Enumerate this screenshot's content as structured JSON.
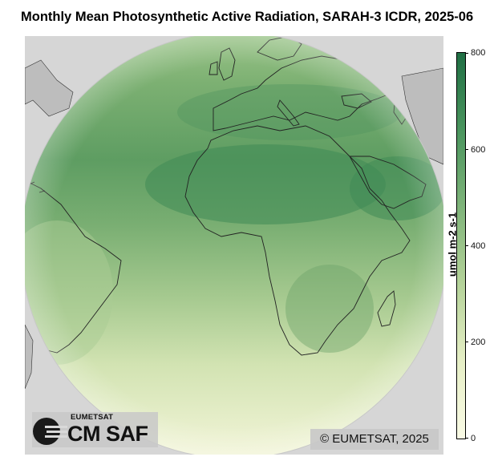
{
  "title": "Monthly Mean Photosynthetic Active Radiation, SARAH-3 ICDR, 2025-06",
  "logo": {
    "org": "EUMETSAT",
    "product": "CM SAF"
  },
  "copyright": "© EUMETSAT, 2025",
  "colorbar": {
    "label": "umol m-2 s-1",
    "range": [
      0,
      800
    ],
    "ticks": [
      "0",
      "200",
      "400",
      "600",
      "800"
    ],
    "colors": [
      "#fafbe6",
      "#e6efc6",
      "#b5d39a",
      "#7fb47a",
      "#4a955e",
      "#206f44"
    ]
  },
  "map": {
    "projection": "geostationary full disk (0°E)",
    "background_color": "#d6d6d6",
    "coastline_color": "#222222"
  }
}
